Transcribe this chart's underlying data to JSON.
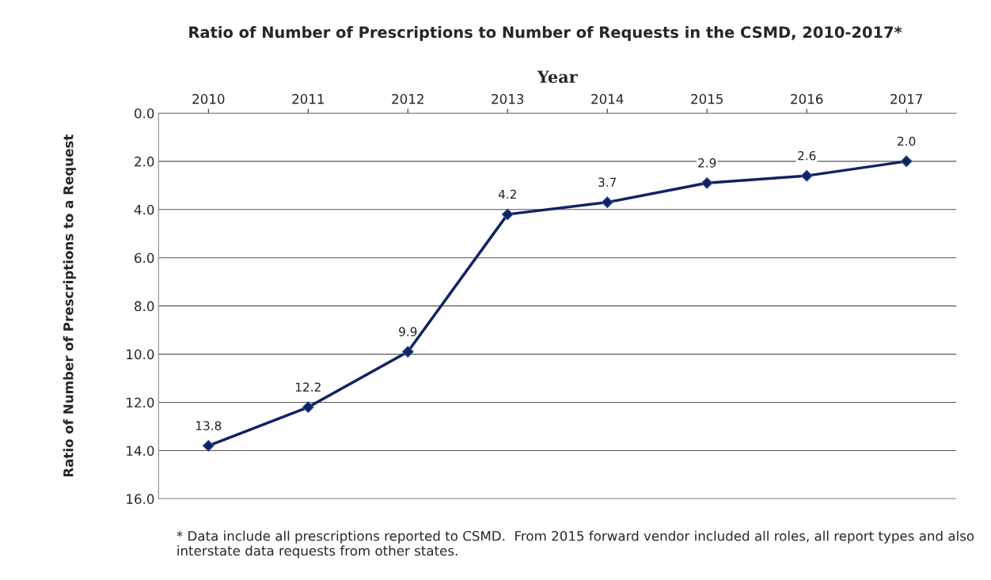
{
  "chart_data": {
    "type": "line",
    "title": "Ratio of Number of Prescriptions to Number of Requests in the CSMD, 2010-2017*",
    "xlabel": "Year",
    "ylabel": "Ratio of Number of Prescriptions to a Request",
    "categories": [
      "2010",
      "2011",
      "2012",
      "2013",
      "2014",
      "2015",
      "2016",
      "2017"
    ],
    "series": [
      {
        "color": "#0f2363",
        "values": [
          13.8,
          12.2,
          9.9,
          4.2,
          3.7,
          2.9,
          2.6,
          2.0
        ],
        "value_labels": [
          "13.8",
          "12.2",
          "9.9",
          "4.2",
          "3.7",
          "2.9",
          "2.6",
          "2.0"
        ]
      }
    ],
    "ylim": [
      16,
      0
    ],
    "yticks": [
      {
        "value": 0,
        "label": "0.0"
      },
      {
        "value": 2,
        "label": "2.0"
      },
      {
        "value": 4,
        "label": "4.0"
      },
      {
        "value": 6,
        "label": "6.0"
      },
      {
        "value": 8,
        "label": "8.0"
      },
      {
        "value": 10,
        "label": "10.0"
      },
      {
        "value": 12,
        "label": "12.0"
      },
      {
        "value": 14,
        "label": "14.0"
      },
      {
        "value": 16,
        "label": "16.0"
      }
    ],
    "grid": "y",
    "marker": "diamond",
    "line_style": "solid",
    "annotations": [
      "* Data include all prescriptions reported to CSMD.  From 2015 forward vendor included all roles, all report types and also interstate data requests from other states."
    ]
  }
}
